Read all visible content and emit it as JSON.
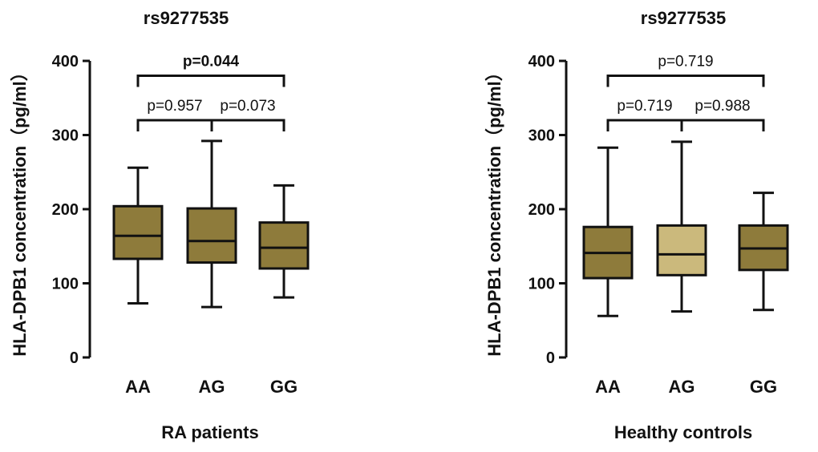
{
  "chart_data": [
    {
      "type": "box",
      "title": "rs9277535",
      "xlabel": "RA patients",
      "ylabel": "HLA-DPB1 concentration（pg/ml）",
      "ylim": [
        0,
        400
      ],
      "yticks": [
        0,
        100,
        200,
        300,
        400
      ],
      "categories": [
        "AA",
        "AG",
        "GG"
      ],
      "boxes": [
        {
          "category": "AA",
          "min": 73,
          "q1": 133,
          "median": 164,
          "q3": 204,
          "max": 256,
          "color": "#8e7b3b"
        },
        {
          "category": "AG",
          "min": 68,
          "q1": 128,
          "median": 157,
          "q3": 201,
          "max": 292,
          "color": "#8e7b3b"
        },
        {
          "category": "GG",
          "min": 81,
          "q1": 120,
          "median": 148,
          "q3": 182,
          "max": 232,
          "color": "#8e7b3b"
        }
      ],
      "comparisons": [
        {
          "from": "AA",
          "to": "GG",
          "label": "p=0.044",
          "bold": true,
          "bracket_y": 380
        },
        {
          "from": "AA",
          "to": "AG",
          "label": "p=0.957",
          "bold": false,
          "bracket_y": 320
        },
        {
          "from": "AG",
          "to": "GG",
          "label": "p=0.073",
          "bold": false,
          "bracket_y": 320
        }
      ]
    },
    {
      "type": "box",
      "title": "rs9277535",
      "xlabel": "Healthy controls",
      "ylabel": "HLA-DPB1 concentration（pg/ml）",
      "ylim": [
        0,
        400
      ],
      "yticks": [
        0,
        100,
        200,
        300,
        400
      ],
      "categories": [
        "AA",
        "AG",
        "GG"
      ],
      "boxes": [
        {
          "category": "AA",
          "min": 56,
          "q1": 107,
          "median": 141,
          "q3": 176,
          "max": 283,
          "color": "#8e7b3b"
        },
        {
          "category": "AG",
          "min": 62,
          "q1": 111,
          "median": 139,
          "q3": 178,
          "max": 291,
          "color": "#cbb97c"
        },
        {
          "category": "GG",
          "min": 64,
          "q1": 118,
          "median": 147,
          "q3": 178,
          "max": 222,
          "color": "#8e7b3b"
        }
      ],
      "comparisons": [
        {
          "from": "AA",
          "to": "GG",
          "label": "p=0.719",
          "bold": false,
          "bracket_y": 380
        },
        {
          "from": "AA",
          "to": "AG",
          "label": "p=0.719",
          "bold": false,
          "bracket_y": 320
        },
        {
          "from": "AG",
          "to": "GG",
          "label": "p=0.988",
          "bold": false,
          "bracket_y": 320
        }
      ]
    }
  ]
}
